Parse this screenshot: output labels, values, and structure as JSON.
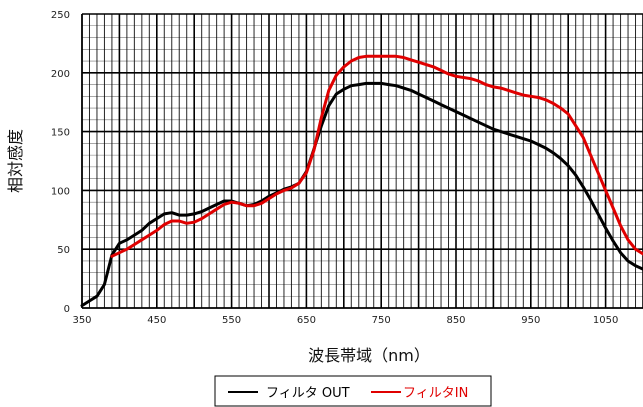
{
  "chart_data": {
    "type": "line",
    "xlabel": "波長帯域（nm）",
    "ylabel": "相対感度",
    "xlim": [
      350,
      1100
    ],
    "ylim": [
      0,
      250
    ],
    "x_ticks": [
      350,
      450,
      550,
      650,
      750,
      850,
      950,
      1050
    ],
    "y_ticks": [
      0,
      50,
      100,
      150,
      200,
      250
    ],
    "grid": true,
    "legend_position": "bottom-center",
    "series": [
      {
        "name": "フィルタ OUT",
        "color": "#000000",
        "x": [
          350,
          360,
          370,
          380,
          390,
          400,
          410,
          420,
          430,
          440,
          450,
          460,
          470,
          480,
          490,
          500,
          510,
          520,
          530,
          540,
          550,
          560,
          570,
          580,
          590,
          600,
          610,
          620,
          630,
          640,
          650,
          660,
          670,
          680,
          690,
          700,
          710,
          720,
          730,
          740,
          750,
          760,
          770,
          780,
          790,
          800,
          810,
          820,
          830,
          840,
          850,
          860,
          870,
          880,
          890,
          900,
          910,
          920,
          930,
          940,
          950,
          960,
          970,
          980,
          990,
          1000,
          1010,
          1020,
          1030,
          1040,
          1050,
          1060,
          1070,
          1080,
          1090,
          1100
        ],
        "values": [
          2,
          6,
          10,
          20,
          45,
          55,
          58,
          62,
          66,
          72,
          76,
          80,
          81,
          79,
          79,
          80,
          82,
          85,
          88,
          91,
          91,
          89,
          87,
          88,
          91,
          95,
          98,
          101,
          103,
          106,
          116,
          135,
          155,
          172,
          182,
          186,
          189,
          190,
          191,
          191,
          191,
          190,
          189,
          187,
          185,
          182,
          179,
          176,
          173,
          170,
          167,
          164,
          161,
          158,
          155,
          152,
          150,
          148,
          146,
          144,
          142,
          139,
          136,
          132,
          127,
          121,
          113,
          103,
          92,
          80,
          68,
          57,
          47,
          40,
          36,
          33
        ]
      },
      {
        "name": "フィルタIN",
        "color": "#e00000",
        "x": [
          390,
          400,
          410,
          420,
          430,
          440,
          450,
          460,
          470,
          480,
          490,
          500,
          510,
          520,
          530,
          540,
          550,
          560,
          570,
          580,
          590,
          600,
          610,
          620,
          630,
          640,
          650,
          660,
          670,
          680,
          690,
          700,
          710,
          720,
          730,
          740,
          750,
          760,
          770,
          780,
          790,
          800,
          810,
          820,
          830,
          840,
          850,
          860,
          870,
          880,
          890,
          900,
          910,
          920,
          930,
          940,
          950,
          960,
          970,
          980,
          990,
          1000,
          1010,
          1020,
          1030,
          1040,
          1050,
          1060,
          1070,
          1080,
          1090,
          1100
        ],
        "values": [
          44,
          47,
          50,
          54,
          58,
          62,
          66,
          71,
          74,
          74,
          72,
          73,
          76,
          80,
          84,
          88,
          90,
          89,
          87,
          87,
          89,
          93,
          97,
          100,
          102,
          106,
          115,
          134,
          162,
          185,
          198,
          205,
          210,
          213,
          214,
          214,
          214,
          214,
          214,
          213,
          211,
          209,
          207,
          205,
          202,
          199,
          197,
          196,
          195,
          193,
          190,
          188,
          187,
          185,
          183,
          181,
          180,
          179,
          177,
          174,
          170,
          165,
          155,
          145,
          130,
          115,
          100,
          85,
          70,
          58,
          50,
          46
        ]
      }
    ]
  }
}
